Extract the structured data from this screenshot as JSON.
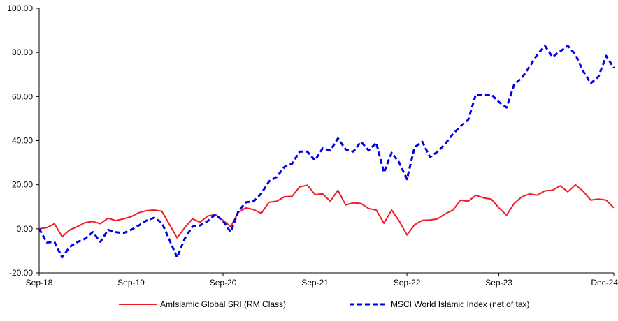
{
  "chart_data": {
    "type": "line",
    "x_tick_labels": [
      "Sep-18",
      "Sep-19",
      "Sep-20",
      "Sep-21",
      "Sep-22",
      "Sep-23",
      "Dec-24"
    ],
    "y_tick_labels": [
      "100.00",
      "80.00",
      "60.00",
      "40.00",
      "20.00",
      "0.00",
      "-20.00"
    ],
    "ylim": [
      -20,
      100
    ],
    "x_start": "2018-09",
    "x_end": "2024-12",
    "grid": false,
    "legend_position": "bottom",
    "series": [
      {
        "name": "AmIslamic Global SRI (RM Class)",
        "color": "#ee1c25",
        "line_style": "solid",
        "values": [
          0.0,
          0.5,
          2.3,
          -3.6,
          -0.5,
          1.0,
          2.8,
          3.3,
          2.3,
          4.8,
          3.7,
          4.5,
          5.5,
          7.3,
          8.2,
          8.5,
          8.0,
          2.0,
          -4.1,
          0.5,
          4.5,
          3.0,
          5.8,
          6.5,
          3.8,
          1.0,
          7.5,
          9.5,
          8.7,
          7.0,
          12.0,
          12.5,
          14.5,
          14.7,
          19.0,
          19.8,
          15.5,
          15.8,
          12.5,
          17.5,
          10.8,
          11.8,
          11.5,
          9.2,
          8.5,
          2.5,
          8.5,
          3.5,
          -2.8,
          1.8,
          3.8,
          4.0,
          4.5,
          6.8,
          8.5,
          13.0,
          12.5,
          15.2,
          14.0,
          13.5,
          9.5,
          6.2,
          11.5,
          14.5,
          15.8,
          15.2,
          17.2,
          17.5,
          19.5,
          16.8,
          20.0,
          17.0,
          13.0,
          13.5,
          13.0,
          9.5
        ]
      },
      {
        "name": "MSCI World Islamic Index (net of tax)",
        "color": "#0000e6",
        "line_style": "dashed",
        "values": [
          0.0,
          -6.2,
          -6.0,
          -13.0,
          -8.2,
          -6.0,
          -4.5,
          -1.5,
          -5.9,
          -0.5,
          -1.5,
          -2.0,
          -0.5,
          1.5,
          3.7,
          5.0,
          2.8,
          -5.0,
          -13.0,
          -4.5,
          1.0,
          1.5,
          3.5,
          6.5,
          3.5,
          -1.5,
          8.0,
          12.0,
          12.5,
          16.0,
          21.5,
          23.5,
          28.0,
          29.5,
          35.0,
          35.0,
          31.0,
          36.5,
          35.5,
          41.0,
          36.0,
          35.0,
          39.5,
          35.5,
          39.0,
          25.5,
          34.5,
          30.0,
          22.5,
          37.0,
          39.5,
          32.5,
          35.0,
          38.5,
          43.0,
          46.5,
          49.5,
          61.0,
          60.5,
          61.0,
          57.5,
          55.0,
          65.5,
          68.5,
          73.5,
          79.0,
          83.0,
          78.0,
          80.5,
          83.0,
          79.0,
          71.5,
          66.0,
          69.0,
          78.5,
          73.0
        ]
      }
    ]
  }
}
